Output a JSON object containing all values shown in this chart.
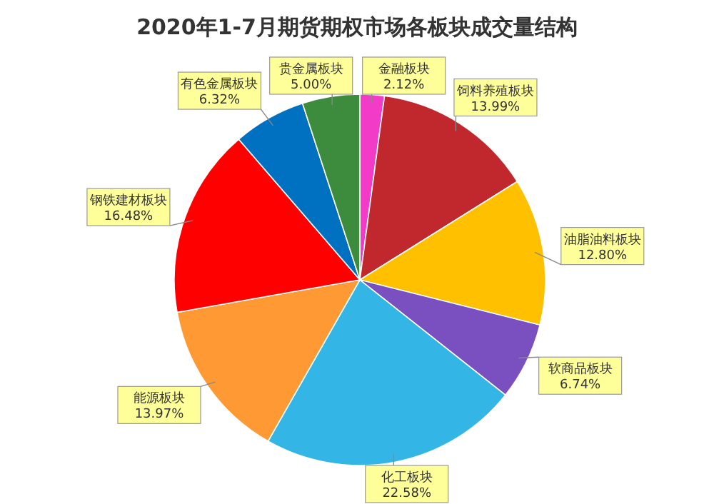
{
  "chart_data": {
    "type": "pie",
    "title": "2020年1-7月期货期权市场各板块成交量结构",
    "categories": [
      "金融板块",
      "饲料养殖板块",
      "油脂油料板块",
      "软商品板块",
      "化工板块",
      "能源板块",
      "钢铁建材板块",
      "有色金属板块",
      "贵金属板块"
    ],
    "values": [
      2.12,
      13.99,
      12.8,
      6.74,
      22.58,
      13.97,
      16.48,
      6.32,
      5.0
    ],
    "value_labels": [
      "2.12%",
      "13.99%",
      "12.80%",
      "6.74%",
      "22.58%",
      "13.97%",
      "16.48%",
      "6.32%",
      "5.00%"
    ],
    "colors": [
      "#f23cc8",
      "#c0282d",
      "#ffc000",
      "#7a4fc0",
      "#33b5e5",
      "#ff9933",
      "#ff0000",
      "#0070c0",
      "#3d8b3d"
    ]
  }
}
